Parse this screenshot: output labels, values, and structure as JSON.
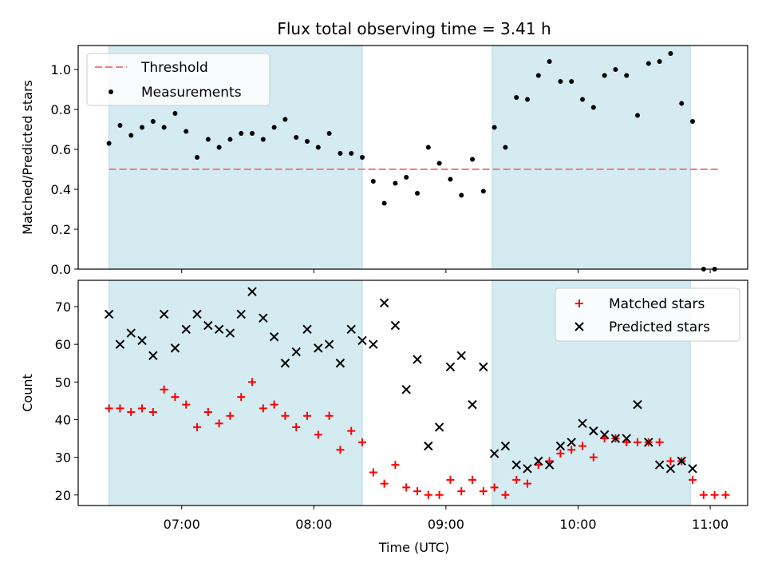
{
  "figure": {
    "title": "Flux total observing time = 3.41 h",
    "xlabel": "Time (UTC)"
  },
  "colors": {
    "shade": "#d4ebf1",
    "threshold": "#f08080",
    "matched": "#ff0000",
    "predicted": "#000000",
    "measurement": "#000000"
  },
  "chart_data": [
    {
      "type": "scatter",
      "panel": "top",
      "ylabel": "Matched/Predicted stars",
      "xlim": [
        "06:13",
        "11:17"
      ],
      "ylim": [
        0,
        1.12
      ],
      "yticks": [
        "0.0",
        "0.2",
        "0.4",
        "0.6",
        "0.8",
        "1.0"
      ],
      "xticks": [
        "07:00",
        "08:00",
        "09:00",
        "10:00",
        "11:00"
      ],
      "tick_labels_shown": false,
      "grid": false,
      "legend": {
        "position": "top-left",
        "entries": [
          "Threshold",
          "Measurements"
        ]
      },
      "shaded_spans": [
        [
          "06:27",
          "08:22"
        ],
        [
          "09:21",
          "10:51"
        ]
      ],
      "threshold": {
        "name": "Threshold",
        "value": 0.5,
        "x": [
          "06:27",
          "11:04"
        ]
      },
      "series": [
        {
          "name": "Measurements",
          "marker": "dot",
          "x": [
            "06:27",
            "06:32",
            "06:37",
            "06:42",
            "06:47",
            "06:52",
            "06:57",
            "07:02",
            "07:07",
            "07:12",
            "07:17",
            "07:22",
            "07:27",
            "07:32",
            "07:37",
            "07:42",
            "07:47",
            "07:52",
            "07:57",
            "08:02",
            "08:07",
            "08:12",
            "08:17",
            "08:22",
            "08:27",
            "08:32",
            "08:37",
            "08:42",
            "08:47",
            "08:52",
            "08:57",
            "09:02",
            "09:07",
            "09:12",
            "09:17",
            "09:22",
            "09:27",
            "09:32",
            "09:37",
            "09:42",
            "09:47",
            "09:52",
            "09:57",
            "10:02",
            "10:07",
            "10:12",
            "10:17",
            "10:22",
            "10:27",
            "10:32",
            "10:37",
            "10:42",
            "10:47",
            "10:52",
            "10:57",
            "11:02"
          ],
          "y": [
            0.63,
            0.72,
            0.67,
            0.71,
            0.74,
            0.71,
            0.78,
            0.69,
            0.56,
            0.65,
            0.61,
            0.65,
            0.68,
            0.68,
            0.65,
            0.71,
            0.75,
            0.66,
            0.64,
            0.61,
            0.68,
            0.58,
            0.58,
            0.56,
            0.44,
            0.33,
            0.43,
            0.46,
            0.38,
            0.61,
            0.53,
            0.45,
            0.37,
            0.55,
            0.39,
            0.71,
            0.61,
            0.86,
            0.85,
            0.97,
            1.04,
            0.94,
            0.94,
            0.85,
            0.81,
            0.97,
            1.0,
            0.97,
            0.77,
            1.03,
            1.04,
            1.08,
            0.83,
            0.74,
            0.0,
            0.0
          ]
        }
      ]
    },
    {
      "type": "scatter",
      "panel": "bottom",
      "ylabel": "Count",
      "xlim": [
        "06:13",
        "11:17"
      ],
      "ylim": [
        17.2,
        77
      ],
      "yticks": [
        "20",
        "30",
        "40",
        "50",
        "60",
        "70"
      ],
      "xticks": [
        "07:00",
        "08:00",
        "09:00",
        "10:00",
        "11:00"
      ],
      "grid": false,
      "legend": {
        "position": "top-right",
        "entries": [
          "Matched stars",
          "Predicted stars"
        ]
      },
      "shaded_spans": [
        [
          "06:27",
          "08:22"
        ],
        [
          "09:21",
          "10:51"
        ]
      ],
      "series": [
        {
          "name": "Matched stars",
          "marker": "plus",
          "x": [
            "06:27",
            "06:32",
            "06:37",
            "06:42",
            "06:47",
            "06:52",
            "06:57",
            "07:02",
            "07:07",
            "07:12",
            "07:17",
            "07:22",
            "07:27",
            "07:32",
            "07:37",
            "07:42",
            "07:47",
            "07:52",
            "07:57",
            "08:02",
            "08:07",
            "08:12",
            "08:17",
            "08:22",
            "08:27",
            "08:32",
            "08:37",
            "08:42",
            "08:47",
            "08:52",
            "08:57",
            "09:02",
            "09:07",
            "09:12",
            "09:17",
            "09:22",
            "09:27",
            "09:32",
            "09:37",
            "09:42",
            "09:47",
            "09:52",
            "09:57",
            "10:02",
            "10:07",
            "10:12",
            "10:17",
            "10:22",
            "10:27",
            "10:32",
            "10:37",
            "10:42",
            "10:47",
            "10:52",
            "10:57",
            "11:02",
            "11:07"
          ],
          "y": [
            43,
            43,
            42,
            43,
            42,
            48,
            46,
            44,
            38,
            42,
            39,
            41,
            46,
            50,
            43,
            44,
            41,
            38,
            41,
            36,
            41,
            32,
            37,
            34,
            26,
            23,
            28,
            22,
            21,
            20,
            20,
            24,
            21,
            24,
            21,
            22,
            20,
            24,
            23,
            28,
            29,
            31,
            32,
            33,
            30,
            35,
            35,
            34,
            34,
            34,
            34,
            29,
            29,
            24,
            20,
            20,
            20
          ]
        },
        {
          "name": "Predicted stars",
          "marker": "x",
          "x": [
            "06:27",
            "06:32",
            "06:37",
            "06:42",
            "06:47",
            "06:52",
            "06:57",
            "07:02",
            "07:07",
            "07:12",
            "07:17",
            "07:22",
            "07:27",
            "07:32",
            "07:37",
            "07:42",
            "07:47",
            "07:52",
            "07:57",
            "08:02",
            "08:07",
            "08:12",
            "08:17",
            "08:22",
            "08:27",
            "08:32",
            "08:37",
            "08:42",
            "08:47",
            "08:52",
            "08:57",
            "09:02",
            "09:07",
            "09:12",
            "09:17",
            "09:22",
            "09:27",
            "09:32",
            "09:37",
            "09:42",
            "09:47",
            "09:52",
            "09:57",
            "10:02",
            "10:07",
            "10:12",
            "10:17",
            "10:22",
            "10:27",
            "10:32",
            "10:37",
            "10:42",
            "10:47",
            "10:52"
          ],
          "y": [
            68,
            60,
            63,
            61,
            57,
            68,
            59,
            64,
            68,
            65,
            64,
            63,
            68,
            74,
            67,
            62,
            55,
            58,
            64,
            59,
            60,
            55,
            64,
            61,
            60,
            71,
            65,
            48,
            56,
            33,
            38,
            54,
            57,
            44,
            54,
            31,
            33,
            28,
            27,
            29,
            28,
            33,
            34,
            39,
            37,
            36,
            35,
            35,
            44,
            34,
            28,
            27,
            29,
            27
          ]
        }
      ]
    }
  ]
}
